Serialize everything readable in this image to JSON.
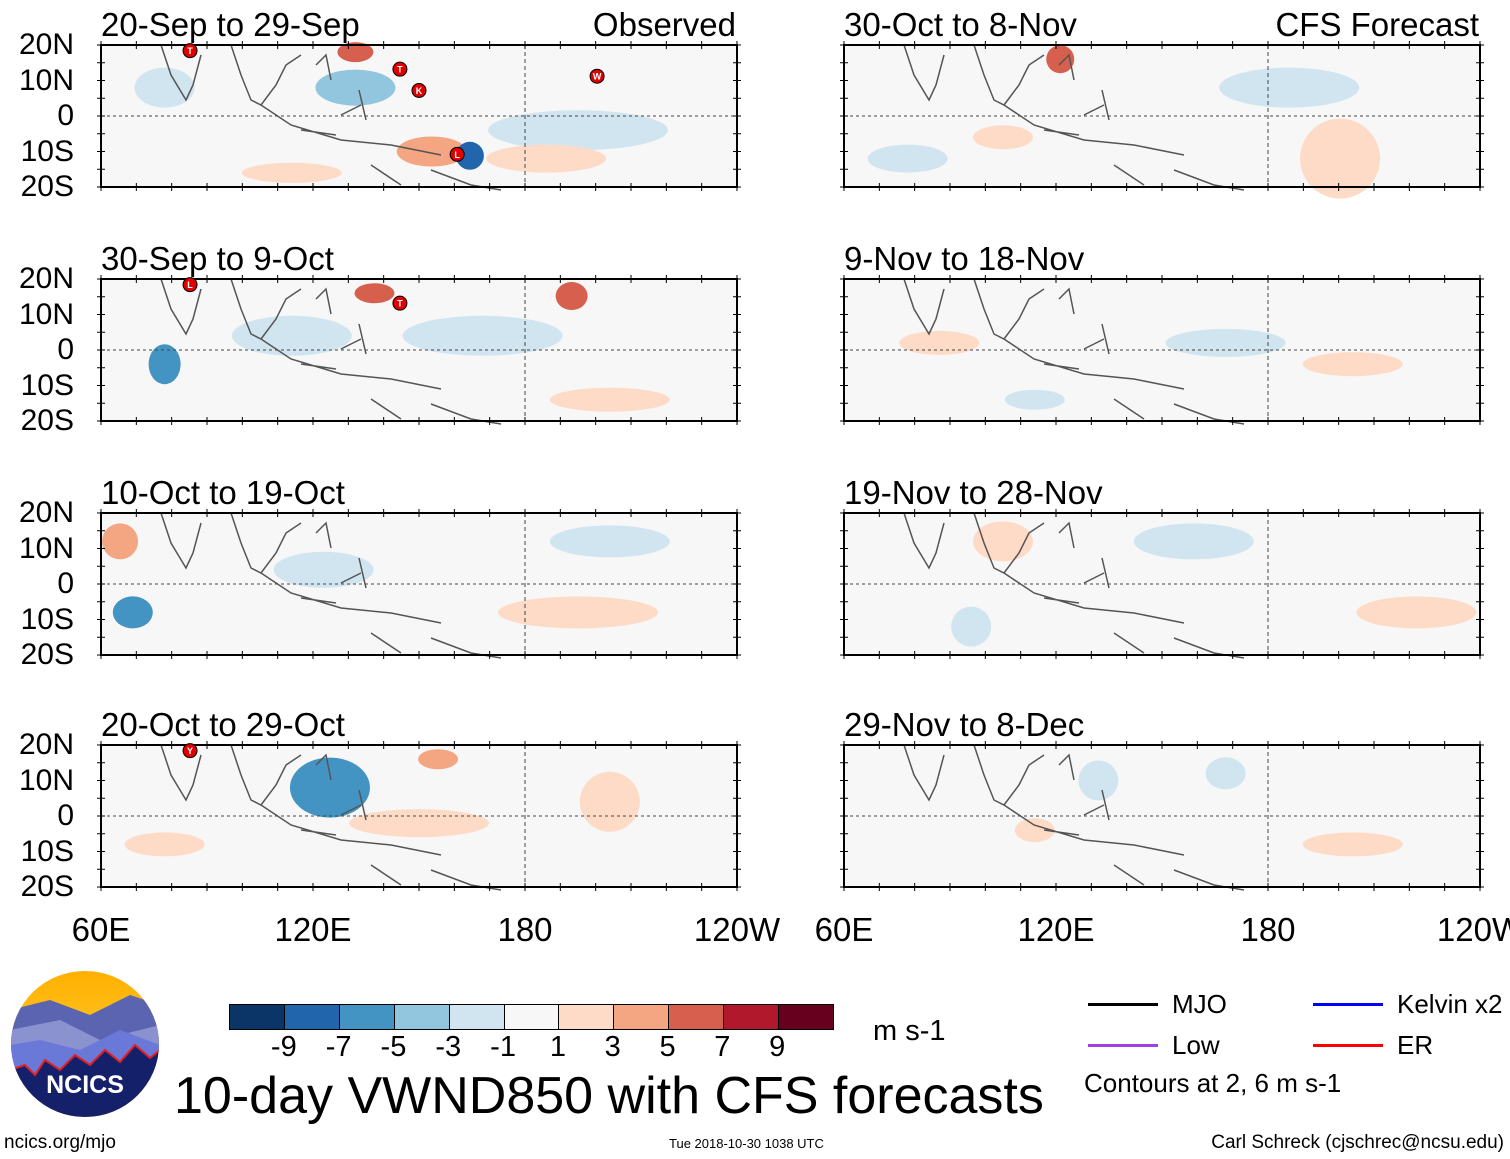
{
  "panels": [
    {
      "title": "20-Sep to 29-Sep",
      "label": "Observed",
      "storms": [
        "T",
        "T",
        "K",
        "L",
        "W"
      ]
    },
    {
      "title": "30-Oct to 8-Nov",
      "label": "CFS Forecast",
      "storms": []
    },
    {
      "title": "30-Sep to 9-Oct",
      "label": "",
      "storms": [
        "L",
        "T"
      ]
    },
    {
      "title": "9-Nov to 18-Nov",
      "label": "",
      "storms": []
    },
    {
      "title": "10-Oct to 19-Oct",
      "label": "",
      "storms": []
    },
    {
      "title": "19-Nov to 28-Nov",
      "label": "",
      "storms": []
    },
    {
      "title": "20-Oct to 29-Oct",
      "label": "",
      "storms": [
        "Y"
      ]
    },
    {
      "title": "29-Nov to 8-Dec",
      "label": "",
      "storms": []
    }
  ],
  "lat_labels": [
    "20N",
    "10N",
    "0",
    "10S",
    "20S"
  ],
  "lon_labels": [
    "60E",
    "120E",
    "180",
    "120W"
  ],
  "colorbar": {
    "colors": [
      "#0b3566",
      "#2166ac",
      "#4393c3",
      "#92c5de",
      "#d1e5f0",
      "#f7f7f7",
      "#fddbc7",
      "#f4a582",
      "#d6604d",
      "#b2182b",
      "#67001f"
    ],
    "labels": [
      "-9",
      "-7",
      "-5",
      "-3",
      "-1",
      "1",
      "3",
      "5",
      "7",
      "9"
    ],
    "units": "m s-1"
  },
  "legend": {
    "items": [
      {
        "label": "MJO",
        "color": "#000000"
      },
      {
        "label": "Kelvin x2",
        "color": "#0000ff"
      },
      {
        "label": "Low",
        "color": "#a040e0"
      },
      {
        "label": "ER",
        "color": "#ff0000"
      }
    ],
    "contours_note": "Contours at 2, 6 m s-1"
  },
  "logo": {
    "text": "NCICS"
  },
  "title": "10-day VWND850 with CFS forecasts",
  "footer": {
    "url": "ncics.org/mjo",
    "timestamp": "Tue 2018-10-30 1038 UTC",
    "author": "Carl Schreck (cjschrec@ncsu.edu)"
  }
}
